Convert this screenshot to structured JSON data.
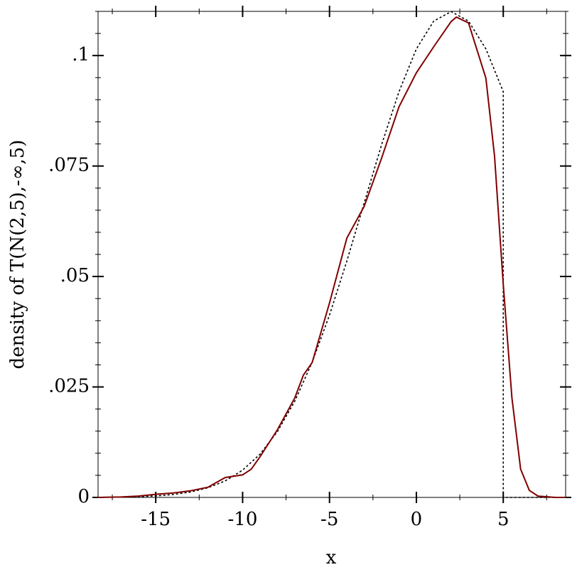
{
  "chart_data": {
    "type": "line",
    "xlabel": "x",
    "ylabel": "density of T(N(2,5),-∞,5)",
    "xlim": [
      -18.32,
      8.59
    ],
    "ylim": [
      0,
      0.11
    ],
    "xticks": [
      -15,
      -10,
      -5,
      0,
      5
    ],
    "yticks": [
      0,
      {
        "value": 0.025,
        "label": ".025"
      },
      {
        "value": 0.05,
        "label": ".05"
      },
      {
        "value": 0.075,
        "label": ".075"
      },
      {
        "value": 0.1,
        "label": ".1"
      }
    ],
    "series": [
      {
        "color": "#000000",
        "style": "dashed",
        "x": [
          -18,
          -17,
          -16,
          -15,
          -14,
          -13,
          -12,
          -11,
          -10,
          -9,
          -8,
          -7,
          -6,
          -5,
          -4,
          -3,
          -2,
          -1,
          0,
          1,
          2,
          3,
          4,
          5,
          5,
          8.59
        ],
        "values": [
          4e-05,
          8e-05,
          0.00017,
          0.00034,
          0.00066,
          0.00122,
          0.00218,
          0.00374,
          0.00617,
          0.00978,
          0.01488,
          0.02176,
          0.03057,
          0.04127,
          0.05352,
          0.06669,
          0.07984,
          0.09184,
          0.1015,
          0.1078,
          0.10995,
          0.1078,
          0.1015,
          0.09184,
          0,
          0
        ]
      },
      {
        "color": "#800000",
        "style": "solid",
        "x": [
          -18.32,
          -17,
          -16,
          -15,
          -14,
          -13,
          -12,
          -11,
          -10,
          -9.5,
          -9,
          -8,
          -7,
          -6.5,
          -6,
          -5,
          -4,
          -3,
          -2,
          -1,
          0,
          1,
          2,
          2.3,
          3,
          4,
          4.5,
          5,
          5.5,
          6,
          6.5,
          7,
          8,
          8.59
        ],
        "values": [
          0,
          0.0001,
          0.0003,
          0.0007,
          0.001,
          0.0015,
          0.0023,
          0.0045,
          0.0051,
          0.0064,
          0.0092,
          0.0153,
          0.0225,
          0.0277,
          0.0305,
          0.044,
          0.0587,
          0.0659,
          0.0768,
          0.0884,
          0.0961,
          0.102,
          0.1077,
          0.1087,
          0.1074,
          0.0949,
          0.0772,
          0.0482,
          0.0225,
          0.0064,
          0.0016,
          0.0003,
          0,
          0
        ]
      }
    ]
  }
}
